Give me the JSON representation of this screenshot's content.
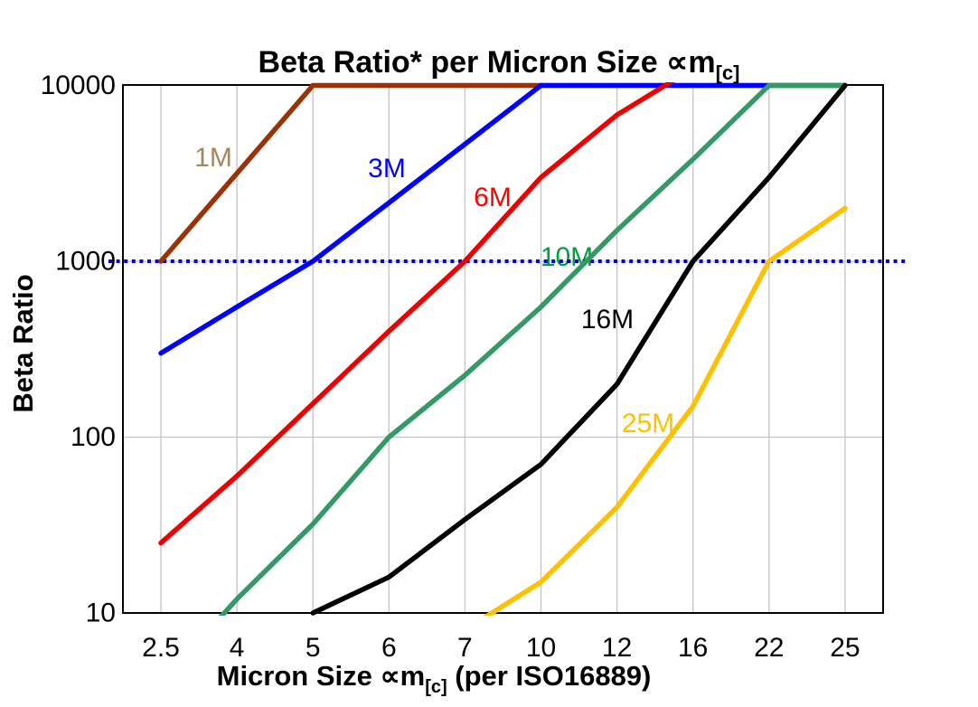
{
  "title": {
    "main": "Beta Ratio* per Micron Size ∝m",
    "subscript": "[c]"
  },
  "x_axis": {
    "label_pre": "Micron Size ∝m",
    "label_sub": "[c]",
    "label_post": " (per ISO16889)",
    "tick_labels": [
      "2.5",
      "4",
      "5",
      "6",
      "7",
      "10",
      "12",
      "16",
      "22",
      "25"
    ]
  },
  "y_axis": {
    "label": "Beta Ratio",
    "tick_labels": [
      "10000",
      "1000",
      "100",
      "10"
    ],
    "tick_values": [
      10000,
      1000,
      100,
      10
    ]
  },
  "chart_data": {
    "type": "line",
    "x_scale": "category",
    "y_scale": "log",
    "ylim": [
      10,
      10000
    ],
    "grid": true,
    "legend": "inline-labels",
    "categories": [
      2.5,
      4,
      5,
      6,
      7,
      10,
      12,
      16,
      22,
      25
    ],
    "series": [
      {
        "name": "1M",
        "color": "#993306",
        "label_color": "#A6875A",
        "values": [
          1000,
          3160,
          10000,
          10000,
          10000,
          10000,
          null,
          null,
          null,
          null
        ]
      },
      {
        "name": "3M",
        "color": "#0000FF",
        "label_color": "#0000FF",
        "values": [
          300,
          550,
          1000,
          2150,
          4640,
          10000,
          10000,
          10000,
          10000,
          10000
        ]
      },
      {
        "name": "6M",
        "color": "#EE0000",
        "label_color": "#FF0000",
        "values": [
          25,
          60,
          155,
          400,
          1000,
          3000,
          6800,
          12500,
          null,
          null
        ]
      },
      {
        "name": "10M",
        "color": "#339966",
        "label_color": "#00A03C",
        "values": [
          4,
          12,
          32,
          100,
          225,
          550,
          1500,
          3800,
          10000,
          10000
        ]
      },
      {
        "name": "16M",
        "color": "#000000",
        "label_color": "#000000",
        "values": [
          null,
          null,
          10,
          16,
          34,
          70,
          200,
          1000,
          3000,
          10000
        ]
      },
      {
        "name": "25M",
        "color": "#FFC000",
        "label_color": "#FFC000",
        "values": [
          null,
          null,
          null,
          null,
          8,
          15,
          40,
          150,
          1000,
          2000
        ]
      }
    ],
    "series_label_positions": {
      "1M": [
        236,
        184
      ],
      "3M": [
        428,
        196
      ],
      "6M": [
        545,
        228
      ],
      "10M": [
        627,
        294
      ],
      "16M": [
        672,
        363
      ],
      "25M": [
        717,
        478
      ]
    },
    "reference_line": {
      "value": 1000,
      "color": "#0000DD",
      "style": "dotted"
    },
    "colors": {
      "grid": "#C4C4C4",
      "border": "#000000",
      "background": "#FFFFFF"
    }
  }
}
